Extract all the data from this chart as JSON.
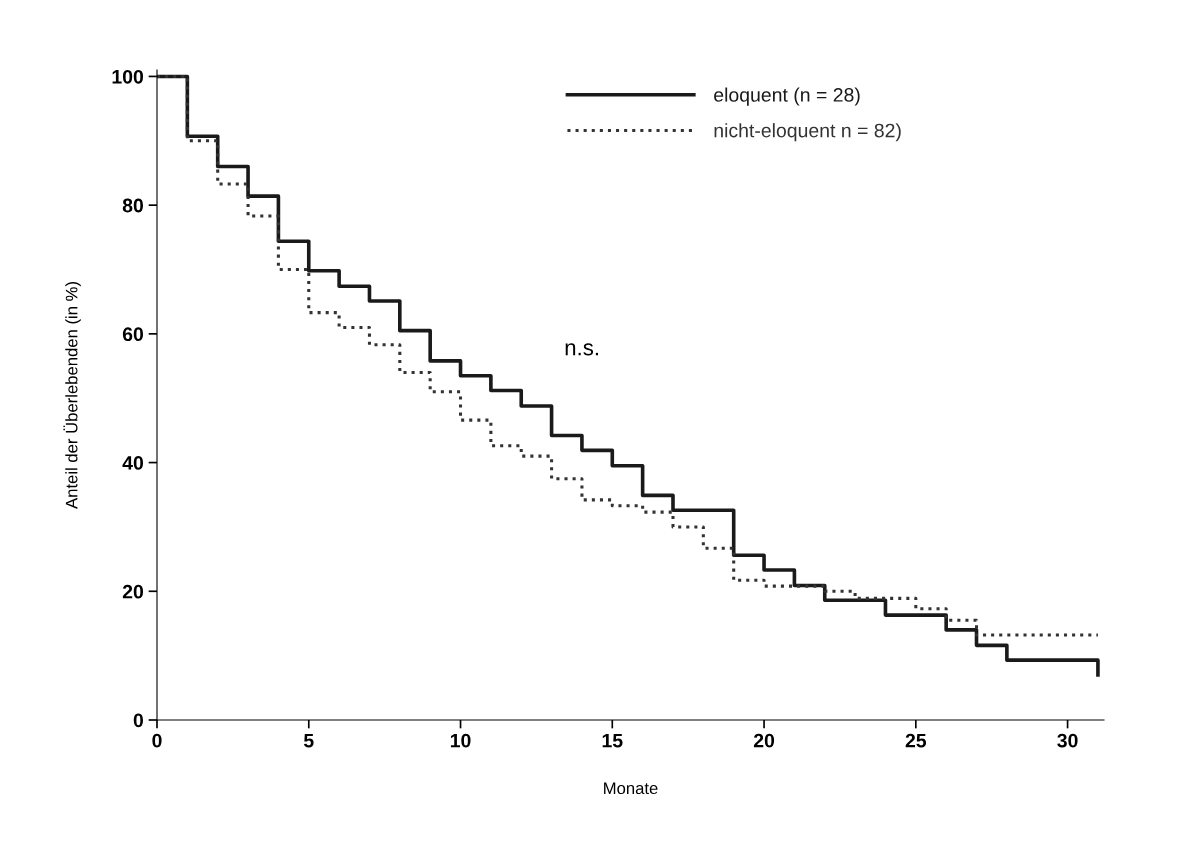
{
  "chart_data": {
    "type": "step",
    "xlabel": "Monate",
    "ylabel": "Anteil der Überlebenden (in %)",
    "xlim": [
      0,
      31.2
    ],
    "xticks": [
      0,
      5,
      10,
      15,
      20,
      25,
      30
    ],
    "ylim": [
      0,
      101
    ],
    "yticks": [
      0,
      20,
      40,
      60,
      80,
      100
    ],
    "grid": false,
    "legend": "top",
    "annotations": [
      "n.s."
    ],
    "series": [
      {
        "name": "eloquent (n = 28)",
        "color": "#1a1a1a",
        "line_style": "solid",
        "x": [
          0,
          1,
          2,
          3,
          4,
          5,
          6,
          7,
          8,
          9,
          10,
          11,
          12,
          13,
          14,
          15,
          16,
          17,
          19,
          20,
          21,
          22,
          24,
          26,
          27,
          28,
          31
        ],
        "values": [
          100,
          90.7,
          86,
          81.4,
          74.4,
          69.8,
          67.4,
          65.1,
          60.5,
          55.8,
          53.5,
          51.2,
          48.8,
          44.2,
          41.9,
          39.5,
          34.9,
          32.6,
          25.6,
          23.3,
          20.9,
          18.6,
          16.3,
          14,
          11.6,
          9.3,
          7
        ]
      },
      {
        "name": "nicht-eloquent n = 82)",
        "color": "#333333",
        "line_style": "dotted",
        "x": [
          0,
          1,
          2,
          3,
          4,
          5,
          6,
          7,
          8,
          9,
          10,
          11,
          12,
          13,
          14,
          15,
          16,
          17,
          18,
          19,
          20,
          22,
          23,
          25,
          26,
          27,
          31
        ],
        "values": [
          100,
          90,
          83.3,
          78.3,
          70,
          63.3,
          61,
          58.3,
          54,
          51,
          46.6,
          42.6,
          41,
          37.5,
          34.2,
          33.3,
          32.3,
          30,
          26.7,
          21.7,
          20.8,
          20,
          18.9,
          17.3,
          15.5,
          13.2,
          13.2
        ]
      }
    ]
  }
}
